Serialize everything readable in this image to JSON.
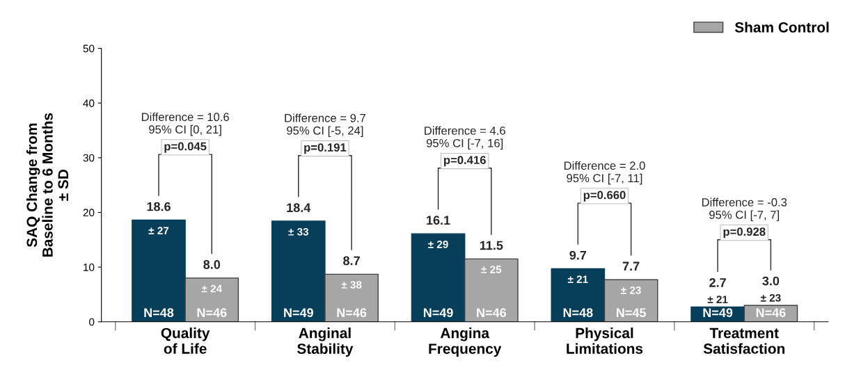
{
  "chart_data": {
    "type": "bar",
    "categories": [
      "Quality\nof Life",
      "Anginal\nStability",
      "Angina\nFrequency",
      "Physical\nLimitations",
      "Treatment\nSatisfaction"
    ],
    "series": [
      {
        "color": "#073e5a",
        "values": [
          18.6,
          18.4,
          16.1,
          9.7,
          2.7
        ],
        "value_labels": [
          "18.6",
          "18.4",
          "16.1",
          "9.7",
          "2.7"
        ]
      },
      {
        "name": "Sham Control",
        "color": "#a6a6a6",
        "values": [
          8.0,
          8.7,
          11.5,
          7.7,
          3.0
        ],
        "value_labels": [
          "8.0",
          "8.7",
          "11.5",
          "7.7",
          "3.0"
        ]
      }
    ],
    "ylim": [
      0,
      50
    ],
    "yticks": [
      0,
      10,
      20,
      30,
      40,
      50
    ],
    "ylabel": "SAQ Change from\nBaseline to 6 Months\n± SD",
    "legend": "top right",
    "grid": false,
    "annotations": [
      "Difference = 10.6\n95% CI [0, 21]",
      "p=0.045",
      "± 27",
      "± 24",
      "N=48",
      "N=46",
      "Difference = 9.7\n95% CI [-5, 24]",
      "p=0.191",
      "± 33",
      "± 38",
      "N=49",
      "N=46",
      "Difference = 4.6\n95% CI [-7, 16]",
      "p=0.416",
      "± 29",
      "± 25",
      "N=49",
      "N=46",
      "Difference = 2.0\n95% CI [-7, 11]",
      "p=0.660",
      "± 21",
      "± 23",
      "N=48",
      "N=45",
      "Difference = -0.3\n95% CI [-7, 7]",
      "p=0.928",
      "± 21",
      "± 23",
      "N=49",
      "N=46"
    ]
  }
}
